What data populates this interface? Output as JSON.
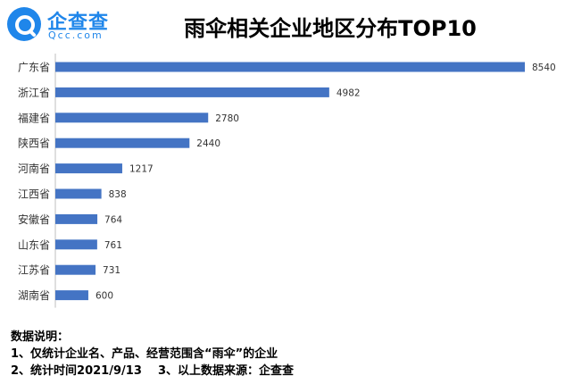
{
  "logo": {
    "name": "企查查",
    "sub": "Qcc.com"
  },
  "chart_data": {
    "type": "bar",
    "orientation": "horizontal",
    "title": "雨伞相关企业地区分布TOP10",
    "categories": [
      "广东省",
      "浙江省",
      "福建省",
      "陕西省",
      "河南省",
      "江西省",
      "安徽省",
      "山东省",
      "江苏省",
      "湖南省"
    ],
    "values": [
      8540,
      4982,
      2780,
      2440,
      1217,
      838,
      764,
      761,
      731,
      600
    ],
    "xlim": [
      0,
      8540
    ],
    "grid": false,
    "bar_color": "#4474c4"
  },
  "notes": {
    "heading": "数据说明：",
    "line1": "1、仅统计企业名、产品、经营范围含“雨伞”的企业",
    "line2": "2、统计时间2021/9/13    3、以上数据来源：企查查"
  }
}
